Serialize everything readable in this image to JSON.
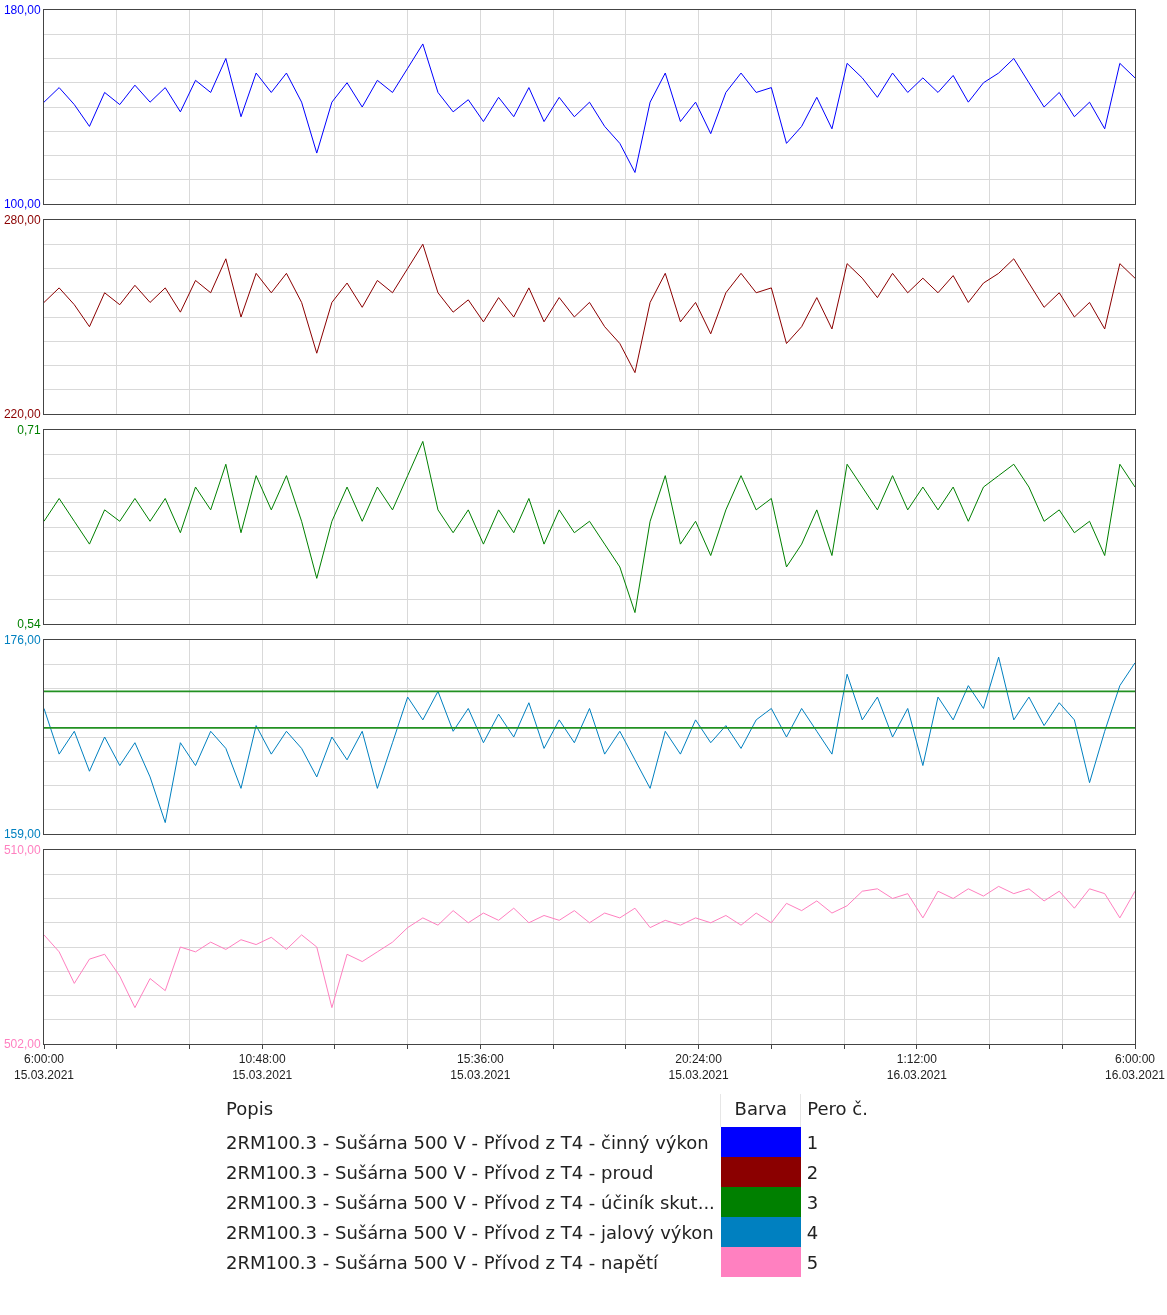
{
  "chart_data": [
    {
      "type": "line",
      "tick_labels": "y",
      "grid": true,
      "legend": "bottom",
      "annotations": [
        "1"
      ],
      "x": [
        "2021-03-15T06:00",
        "2021-03-15T06:20",
        "2021-03-15T06:40",
        "2021-03-15T07:00",
        "2021-03-15T07:20",
        "2021-03-15T07:40",
        "2021-03-15T08:00",
        "2021-03-15T08:20",
        "2021-03-15T08:40",
        "2021-03-15T09:00",
        "2021-03-15T09:20",
        "2021-03-15T09:40",
        "2021-03-15T10:00",
        "2021-03-15T10:20",
        "2021-03-15T10:40",
        "2021-03-15T11:00",
        "2021-03-15T11:20",
        "2021-03-15T11:40",
        "2021-03-15T12:00",
        "2021-03-15T12:20",
        "2021-03-15T12:40",
        "2021-03-15T13:00",
        "2021-03-15T13:20",
        "2021-03-15T13:40",
        "2021-03-15T14:00",
        "2021-03-15T14:20",
        "2021-03-15T14:40",
        "2021-03-15T15:00",
        "2021-03-15T15:20",
        "2021-03-15T15:40",
        "2021-03-15T16:00",
        "2021-03-15T16:20",
        "2021-03-15T16:40",
        "2021-03-15T17:00",
        "2021-03-15T17:20",
        "2021-03-15T17:40",
        "2021-03-15T18:00",
        "2021-03-15T18:20",
        "2021-03-15T18:40",
        "2021-03-15T19:00",
        "2021-03-15T19:20",
        "2021-03-15T19:40",
        "2021-03-15T20:00",
        "2021-03-15T20:20",
        "2021-03-15T20:40",
        "2021-03-15T21:00",
        "2021-03-15T21:20",
        "2021-03-15T21:40",
        "2021-03-15T22:00",
        "2021-03-15T22:20",
        "2021-03-15T22:40",
        "2021-03-15T23:00",
        "2021-03-15T23:20",
        "2021-03-15T23:40",
        "2021-03-16T00:00",
        "2021-03-16T00:20",
        "2021-03-16T00:40",
        "2021-03-16T01:00",
        "2021-03-16T01:20",
        "2021-03-16T01:40",
        "2021-03-16T02:00",
        "2021-03-16T02:20",
        "2021-03-16T02:40",
        "2021-03-16T03:00",
        "2021-03-16T03:20",
        "2021-03-16T03:40",
        "2021-03-16T04:00",
        "2021-03-16T04:20",
        "2021-03-16T04:40",
        "2021-03-16T05:00",
        "2021-03-16T05:20",
        "2021-03-16T05:40",
        "2021-03-16T06:00"
      ],
      "xlim": [
        "2021-03-15T06:00",
        "2021-03-16T06:00"
      ],
      "xticks": [
        {
          "value": "2021-03-15T06:00",
          "label": null
        },
        {
          "value": "2021-03-15T07:36",
          "label": null
        },
        {
          "value": "2021-03-15T09:12",
          "label": null
        },
        {
          "value": "2021-03-15T10:48",
          "label": null
        },
        {
          "value": "2021-03-15T12:24",
          "label": null
        },
        {
          "value": "2021-03-15T14:00",
          "label": null
        },
        {
          "value": "2021-03-15T15:36",
          "label": null
        },
        {
          "value": "2021-03-15T17:12",
          "label": null
        },
        {
          "value": "2021-03-15T18:48",
          "label": null
        },
        {
          "value": "2021-03-15T20:24",
          "label": null
        },
        {
          "value": "2021-03-15T22:00",
          "label": null
        },
        {
          "value": "2021-03-15T23:36",
          "label": null
        },
        {
          "value": "2021-03-16T01:12",
          "label": null
        },
        {
          "value": "2021-03-16T02:48",
          "label": null
        },
        {
          "value": "2021-03-16T04:24",
          "label": null
        },
        {
          "value": "2021-03-16T06:00",
          "label": null
        }
      ],
      "ylim": [
        100,
        180
      ],
      "yticks": [
        {
          "value": 180,
          "label": "180,00"
        },
        {
          "value": 170,
          "label": null
        },
        {
          "value": 160,
          "label": null
        },
        {
          "value": 150,
          "label": null
        },
        {
          "value": 140,
          "label": null
        },
        {
          "value": 130,
          "label": null
        },
        {
          "value": 120,
          "label": null
        },
        {
          "value": 110,
          "label": null
        },
        {
          "value": 100,
          "label": "100,00"
        }
      ],
      "series": [
        {
          "name": "2RM100.3 - Sušárna 500 V - Přívod z T4 - činný výkon",
          "color": "#0000ff",
          "values": [
            142,
            148,
            141,
            132,
            146,
            141,
            149,
            142,
            148,
            138,
            151,
            146,
            160,
            136,
            154,
            146,
            154,
            142,
            121,
            142,
            150,
            140,
            151,
            146,
            156,
            166,
            146,
            138,
            143,
            134,
            144,
            136,
            148,
            134,
            144,
            136,
            142,
            132,
            125,
            113,
            142,
            154,
            134,
            142,
            129,
            146,
            154,
            146,
            148,
            125,
            132,
            144,
            131,
            158,
            152,
            144,
            154,
            146,
            152,
            146,
            153,
            142,
            150,
            154,
            160,
            150,
            140,
            146,
            136,
            142,
            131,
            158,
            152
          ]
        }
      ]
    },
    {
      "type": "line",
      "tick_labels": "y",
      "grid": true,
      "legend": "bottom",
      "annotations": [
        "2"
      ],
      "x": [
        "2021-03-15T06:00",
        "2021-03-15T06:20",
        "2021-03-15T06:40",
        "2021-03-15T07:00",
        "2021-03-15T07:20",
        "2021-03-15T07:40",
        "2021-03-15T08:00",
        "2021-03-15T08:20",
        "2021-03-15T08:40",
        "2021-03-15T09:00",
        "2021-03-15T09:20",
        "2021-03-15T09:40",
        "2021-03-15T10:00",
        "2021-03-15T10:20",
        "2021-03-15T10:40",
        "2021-03-15T11:00",
        "2021-03-15T11:20",
        "2021-03-15T11:40",
        "2021-03-15T12:00",
        "2021-03-15T12:20",
        "2021-03-15T12:40",
        "2021-03-15T13:00",
        "2021-03-15T13:20",
        "2021-03-15T13:40",
        "2021-03-15T14:00",
        "2021-03-15T14:20",
        "2021-03-15T14:40",
        "2021-03-15T15:00",
        "2021-03-15T15:20",
        "2021-03-15T15:40",
        "2021-03-15T16:00",
        "2021-03-15T16:20",
        "2021-03-15T16:40",
        "2021-03-15T17:00",
        "2021-03-15T17:20",
        "2021-03-15T17:40",
        "2021-03-15T18:00",
        "2021-03-15T18:20",
        "2021-03-15T18:40",
        "2021-03-15T19:00",
        "2021-03-15T19:20",
        "2021-03-15T19:40",
        "2021-03-15T20:00",
        "2021-03-15T20:20",
        "2021-03-15T20:40",
        "2021-03-15T21:00",
        "2021-03-15T21:20",
        "2021-03-15T21:40",
        "2021-03-15T22:00",
        "2021-03-15T22:20",
        "2021-03-15T22:40",
        "2021-03-15T23:00",
        "2021-03-15T23:20",
        "2021-03-15T23:40",
        "2021-03-16T00:00",
        "2021-03-16T00:20",
        "2021-03-16T00:40",
        "2021-03-16T01:00",
        "2021-03-16T01:20",
        "2021-03-16T01:40",
        "2021-03-16T02:00",
        "2021-03-16T02:20",
        "2021-03-16T02:40",
        "2021-03-16T03:00",
        "2021-03-16T03:20",
        "2021-03-16T03:40",
        "2021-03-16T04:00",
        "2021-03-16T04:20",
        "2021-03-16T04:40",
        "2021-03-16T05:00",
        "2021-03-16T05:20",
        "2021-03-16T05:40",
        "2021-03-16T06:00"
      ],
      "xlim": [
        "2021-03-15T06:00",
        "2021-03-16T06:00"
      ],
      "xticks": [
        {
          "value": "2021-03-15T06:00",
          "label": null
        },
        {
          "value": "2021-03-15T07:36",
          "label": null
        },
        {
          "value": "2021-03-15T09:12",
          "label": null
        },
        {
          "value": "2021-03-15T10:48",
          "label": null
        },
        {
          "value": "2021-03-15T12:24",
          "label": null
        },
        {
          "value": "2021-03-15T14:00",
          "label": null
        },
        {
          "value": "2021-03-15T15:36",
          "label": null
        },
        {
          "value": "2021-03-15T17:12",
          "label": null
        },
        {
          "value": "2021-03-15T18:48",
          "label": null
        },
        {
          "value": "2021-03-15T20:24",
          "label": null
        },
        {
          "value": "2021-03-15T22:00",
          "label": null
        },
        {
          "value": "2021-03-15T23:36",
          "label": null
        },
        {
          "value": "2021-03-16T01:12",
          "label": null
        },
        {
          "value": "2021-03-16T02:48",
          "label": null
        },
        {
          "value": "2021-03-16T04:24",
          "label": null
        },
        {
          "value": "2021-03-16T06:00",
          "label": null
        }
      ],
      "ylim": [
        220,
        280
      ],
      "yticks": [
        {
          "value": 280,
          "label": "280,00"
        },
        {
          "value": 272.5,
          "label": null
        },
        {
          "value": 265,
          "label": null
        },
        {
          "value": 257.5,
          "label": null
        },
        {
          "value": 250,
          "label": null
        },
        {
          "value": 242.5,
          "label": null
        },
        {
          "value": 235,
          "label": null
        },
        {
          "value": 227.5,
          "label": null
        },
        {
          "value": 220,
          "label": "220,00"
        }
      ],
      "series": [
        {
          "name": "2RM100.3 - Sušárna 500 V - Přívod z T4 - proud",
          "color": "#8b0000",
          "values": [
            254.5,
            259,
            253.8,
            247,
            257.5,
            253.8,
            259.8,
            254.5,
            259,
            251.5,
            261.3,
            257.5,
            268,
            250,
            263.5,
            257.5,
            263.5,
            254.5,
            238.8,
            254.5,
            260.5,
            253,
            261.3,
            257.5,
            265,
            272.5,
            257.5,
            251.5,
            255.3,
            248.5,
            256,
            250,
            259,
            248.5,
            256,
            250,
            254.5,
            247,
            241.8,
            232.8,
            254.5,
            263.5,
            248.5,
            254.5,
            244.8,
            257.5,
            263.5,
            257.5,
            259,
            241.8,
            247,
            256,
            246.3,
            266.5,
            262,
            256,
            263.5,
            257.5,
            262,
            257.5,
            262.8,
            254.5,
            260.5,
            263.5,
            268,
            260.5,
            253,
            257.5,
            250,
            254.5,
            246.3,
            266.5,
            262
          ]
        }
      ]
    },
    {
      "type": "line",
      "tick_labels": "y",
      "grid": true,
      "legend": "bottom",
      "annotations": [
        "3"
      ],
      "x": [
        "2021-03-15T06:00",
        "2021-03-15T06:20",
        "2021-03-15T06:40",
        "2021-03-15T07:00",
        "2021-03-15T07:20",
        "2021-03-15T07:40",
        "2021-03-15T08:00",
        "2021-03-15T08:20",
        "2021-03-15T08:40",
        "2021-03-15T09:00",
        "2021-03-15T09:20",
        "2021-03-15T09:40",
        "2021-03-15T10:00",
        "2021-03-15T10:20",
        "2021-03-15T10:40",
        "2021-03-15T11:00",
        "2021-03-15T11:20",
        "2021-03-15T11:40",
        "2021-03-15T12:00",
        "2021-03-15T12:20",
        "2021-03-15T12:40",
        "2021-03-15T13:00",
        "2021-03-15T13:20",
        "2021-03-15T13:40",
        "2021-03-15T14:00",
        "2021-03-15T14:20",
        "2021-03-15T14:40",
        "2021-03-15T15:00",
        "2021-03-15T15:20",
        "2021-03-15T15:40",
        "2021-03-15T16:00",
        "2021-03-15T16:20",
        "2021-03-15T16:40",
        "2021-03-15T17:00",
        "2021-03-15T17:20",
        "2021-03-15T17:40",
        "2021-03-15T18:00",
        "2021-03-15T18:20",
        "2021-03-15T18:40",
        "2021-03-15T19:00",
        "2021-03-15T19:20",
        "2021-03-15T19:40",
        "2021-03-15T20:00",
        "2021-03-15T20:20",
        "2021-03-15T20:40",
        "2021-03-15T21:00",
        "2021-03-15T21:20",
        "2021-03-15T21:40",
        "2021-03-15T22:00",
        "2021-03-15T22:20",
        "2021-03-15T22:40",
        "2021-03-15T23:00",
        "2021-03-15T23:20",
        "2021-03-15T23:40",
        "2021-03-16T00:00",
        "2021-03-16T00:20",
        "2021-03-16T00:40",
        "2021-03-16T01:00",
        "2021-03-16T01:20",
        "2021-03-16T01:40",
        "2021-03-16T02:00",
        "2021-03-16T02:20",
        "2021-03-16T02:40",
        "2021-03-16T03:00",
        "2021-03-16T03:20",
        "2021-03-16T03:40",
        "2021-03-16T04:00",
        "2021-03-16T04:20",
        "2021-03-16T04:40",
        "2021-03-16T05:00",
        "2021-03-16T05:20",
        "2021-03-16T05:40",
        "2021-03-16T06:00"
      ],
      "xlim": [
        "2021-03-15T06:00",
        "2021-03-16T06:00"
      ],
      "xticks": [
        {
          "value": "2021-03-15T06:00",
          "label": null
        },
        {
          "value": "2021-03-15T07:36",
          "label": null
        },
        {
          "value": "2021-03-15T09:12",
          "label": null
        },
        {
          "value": "2021-03-15T10:48",
          "label": null
        },
        {
          "value": "2021-03-15T12:24",
          "label": null
        },
        {
          "value": "2021-03-15T14:00",
          "label": null
        },
        {
          "value": "2021-03-15T15:36",
          "label": null
        },
        {
          "value": "2021-03-15T17:12",
          "label": null
        },
        {
          "value": "2021-03-15T18:48",
          "label": null
        },
        {
          "value": "2021-03-15T20:24",
          "label": null
        },
        {
          "value": "2021-03-15T22:00",
          "label": null
        },
        {
          "value": "2021-03-15T23:36",
          "label": null
        },
        {
          "value": "2021-03-16T01:12",
          "label": null
        },
        {
          "value": "2021-03-16T02:48",
          "label": null
        },
        {
          "value": "2021-03-16T04:24",
          "label": null
        },
        {
          "value": "2021-03-16T06:00",
          "label": null
        }
      ],
      "ylim": [
        0.54,
        0.71
      ],
      "yticks": [
        {
          "value": 0.71,
          "label": "0,71"
        },
        {
          "value": 0.68875,
          "label": null
        },
        {
          "value": 0.6675,
          "label": null
        },
        {
          "value": 0.64625,
          "label": null
        },
        {
          "value": 0.625,
          "label": null
        },
        {
          "value": 0.60375,
          "label": null
        },
        {
          "value": 0.5825,
          "label": null
        },
        {
          "value": 0.56125,
          "label": null
        },
        {
          "value": 0.54,
          "label": "0,54"
        }
      ],
      "series": [
        {
          "name": "2RM100.3 - Sušárna 500 V - Přívod z T4 - účiník skut...",
          "color": "#008000",
          "values": [
            0.63,
            0.65,
            0.63,
            0.61,
            0.64,
            0.63,
            0.65,
            0.63,
            0.65,
            0.62,
            0.66,
            0.64,
            0.68,
            0.62,
            0.67,
            0.64,
            0.67,
            0.63,
            0.58,
            0.63,
            0.66,
            0.63,
            0.66,
            0.64,
            0.67,
            0.7,
            0.64,
            0.62,
            0.64,
            0.61,
            0.64,
            0.62,
            0.65,
            0.61,
            0.64,
            0.62,
            0.63,
            0.61,
            0.59,
            0.55,
            0.63,
            0.67,
            0.61,
            0.63,
            0.6,
            0.64,
            0.67,
            0.64,
            0.65,
            0.59,
            0.61,
            0.64,
            0.6,
            0.68,
            0.66,
            0.64,
            0.67,
            0.64,
            0.66,
            0.64,
            0.66,
            0.63,
            0.66,
            0.67,
            0.68,
            0.66,
            0.63,
            0.64,
            0.62,
            0.63,
            0.6,
            0.68,
            0.66
          ]
        }
      ]
    },
    {
      "type": "line",
      "tick_labels": "y",
      "grid": true,
      "legend": "bottom",
      "annotations": [
        "4"
      ],
      "x": [
        "2021-03-15T06:00",
        "2021-03-15T06:20",
        "2021-03-15T06:40",
        "2021-03-15T07:00",
        "2021-03-15T07:20",
        "2021-03-15T07:40",
        "2021-03-15T08:00",
        "2021-03-15T08:20",
        "2021-03-15T08:40",
        "2021-03-15T09:00",
        "2021-03-15T09:20",
        "2021-03-15T09:40",
        "2021-03-15T10:00",
        "2021-03-15T10:20",
        "2021-03-15T10:40",
        "2021-03-15T11:00",
        "2021-03-15T11:20",
        "2021-03-15T11:40",
        "2021-03-15T12:00",
        "2021-03-15T12:20",
        "2021-03-15T12:40",
        "2021-03-15T13:00",
        "2021-03-15T13:20",
        "2021-03-15T13:40",
        "2021-03-15T14:00",
        "2021-03-15T14:20",
        "2021-03-15T14:40",
        "2021-03-15T15:00",
        "2021-03-15T15:20",
        "2021-03-15T15:40",
        "2021-03-15T16:00",
        "2021-03-15T16:20",
        "2021-03-15T16:40",
        "2021-03-15T17:00",
        "2021-03-15T17:20",
        "2021-03-15T17:40",
        "2021-03-15T18:00",
        "2021-03-15T18:20",
        "2021-03-15T18:40",
        "2021-03-15T19:00",
        "2021-03-15T19:20",
        "2021-03-15T19:40",
        "2021-03-15T20:00",
        "2021-03-15T20:20",
        "2021-03-15T20:40",
        "2021-03-15T21:00",
        "2021-03-15T21:20",
        "2021-03-15T21:40",
        "2021-03-15T22:00",
        "2021-03-15T22:20",
        "2021-03-15T22:40",
        "2021-03-15T23:00",
        "2021-03-15T23:20",
        "2021-03-15T23:40",
        "2021-03-16T00:00",
        "2021-03-16T00:20",
        "2021-03-16T00:40",
        "2021-03-16T01:00",
        "2021-03-16T01:20",
        "2021-03-16T01:40",
        "2021-03-16T02:00",
        "2021-03-16T02:20",
        "2021-03-16T02:40",
        "2021-03-16T03:00",
        "2021-03-16T03:20",
        "2021-03-16T03:40",
        "2021-03-16T04:00",
        "2021-03-16T04:20",
        "2021-03-16T04:40",
        "2021-03-16T05:00",
        "2021-03-16T05:20",
        "2021-03-16T05:40",
        "2021-03-16T06:00"
      ],
      "xlim": [
        "2021-03-15T06:00",
        "2021-03-16T06:00"
      ],
      "xticks": [
        {
          "value": "2021-03-15T06:00",
          "label": null
        },
        {
          "value": "2021-03-15T07:36",
          "label": null
        },
        {
          "value": "2021-03-15T09:12",
          "label": null
        },
        {
          "value": "2021-03-15T10:48",
          "label": null
        },
        {
          "value": "2021-03-15T12:24",
          "label": null
        },
        {
          "value": "2021-03-15T14:00",
          "label": null
        },
        {
          "value": "2021-03-15T15:36",
          "label": null
        },
        {
          "value": "2021-03-15T17:12",
          "label": null
        },
        {
          "value": "2021-03-15T18:48",
          "label": null
        },
        {
          "value": "2021-03-15T20:24",
          "label": null
        },
        {
          "value": "2021-03-15T22:00",
          "label": null
        },
        {
          "value": "2021-03-15T23:36",
          "label": null
        },
        {
          "value": "2021-03-16T01:12",
          "label": null
        },
        {
          "value": "2021-03-16T02:48",
          "label": null
        },
        {
          "value": "2021-03-16T04:24",
          "label": null
        },
        {
          "value": "2021-03-16T06:00",
          "label": null
        }
      ],
      "ylim": [
        159,
        176
      ],
      "yticks": [
        {
          "value": 176,
          "label": "176,00"
        },
        {
          "value": 173.875,
          "label": null
        },
        {
          "value": 171.75,
          "label": null
        },
        {
          "value": 169.625,
          "label": null
        },
        {
          "value": 167.5,
          "label": null
        },
        {
          "value": 165.375,
          "label": null
        },
        {
          "value": 163.25,
          "label": null
        },
        {
          "value": 161.125,
          "label": null
        },
        {
          "value": 159,
          "label": "159,00"
        }
      ],
      "ref_lines": [
        {
          "axis": "y",
          "value": 171.5,
          "color": "#229122"
        },
        {
          "axis": "y",
          "value": 168.3,
          "color": "#229122"
        }
      ],
      "series": [
        {
          "name": "2RM100.3 - Sušárna 500 V - Přívod z T4 - jalový výkon",
          "color": "#0080c0",
          "values": [
            170,
            166,
            168,
            164.5,
            167.5,
            165,
            167,
            164,
            160,
            167,
            165,
            168,
            166.5,
            163,
            168.5,
            166,
            168,
            166.5,
            164,
            167.5,
            165.5,
            168,
            163,
            167,
            171,
            169,
            171.5,
            168,
            170,
            167,
            169.5,
            167.5,
            170.5,
            166.5,
            169,
            167,
            170,
            166,
            168,
            165.5,
            163,
            168,
            166,
            169,
            167,
            168.5,
            166.5,
            169,
            170,
            167.5,
            170,
            168,
            166,
            173,
            169,
            171,
            167.5,
            170,
            165,
            171,
            169,
            172,
            170,
            174.5,
            169,
            171,
            168.5,
            170.5,
            169,
            163.5,
            168,
            172,
            174
          ]
        }
      ]
    },
    {
      "type": "line",
      "grid": true,
      "legend": "bottom",
      "legend_title": "Popis",
      "annotations": [
        "5",
        "Barva",
        "Pero č."
      ],
      "x": [
        "2021-03-15T06:00",
        "2021-03-15T06:20",
        "2021-03-15T06:40",
        "2021-03-15T07:00",
        "2021-03-15T07:20",
        "2021-03-15T07:40",
        "2021-03-15T08:00",
        "2021-03-15T08:20",
        "2021-03-15T08:40",
        "2021-03-15T09:00",
        "2021-03-15T09:20",
        "2021-03-15T09:40",
        "2021-03-15T10:00",
        "2021-03-15T10:20",
        "2021-03-15T10:40",
        "2021-03-15T11:00",
        "2021-03-15T11:20",
        "2021-03-15T11:40",
        "2021-03-15T12:00",
        "2021-03-15T12:20",
        "2021-03-15T12:40",
        "2021-03-15T13:00",
        "2021-03-15T13:20",
        "2021-03-15T13:40",
        "2021-03-15T14:00",
        "2021-03-15T14:20",
        "2021-03-15T14:40",
        "2021-03-15T15:00",
        "2021-03-15T15:20",
        "2021-03-15T15:40",
        "2021-03-15T16:00",
        "2021-03-15T16:20",
        "2021-03-15T16:40",
        "2021-03-15T17:00",
        "2021-03-15T17:20",
        "2021-03-15T17:40",
        "2021-03-15T18:00",
        "2021-03-15T18:20",
        "2021-03-15T18:40",
        "2021-03-15T19:00",
        "2021-03-15T19:20",
        "2021-03-15T19:40",
        "2021-03-15T20:00",
        "2021-03-15T20:20",
        "2021-03-15T20:40",
        "2021-03-15T21:00",
        "2021-03-15T21:20",
        "2021-03-15T21:40",
        "2021-03-15T22:00",
        "2021-03-15T22:20",
        "2021-03-15T22:40",
        "2021-03-15T23:00",
        "2021-03-15T23:20",
        "2021-03-15T23:40",
        "2021-03-16T00:00",
        "2021-03-16T00:20",
        "2021-03-16T00:40",
        "2021-03-16T01:00",
        "2021-03-16T01:20",
        "2021-03-16T01:40",
        "2021-03-16T02:00",
        "2021-03-16T02:20",
        "2021-03-16T02:40",
        "2021-03-16T03:00",
        "2021-03-16T03:20",
        "2021-03-16T03:40",
        "2021-03-16T04:00",
        "2021-03-16T04:20",
        "2021-03-16T04:40",
        "2021-03-16T05:00",
        "2021-03-16T05:20",
        "2021-03-16T05:40",
        "2021-03-16T06:00"
      ],
      "xlim": [
        "2021-03-15T06:00",
        "2021-03-16T06:00"
      ],
      "xticks": [
        {
          "value": "2021-03-15T06:00",
          "label": "6:00:00\n15.03.2021"
        },
        {
          "value": "2021-03-15T07:36",
          "label": null
        },
        {
          "value": "2021-03-15T09:12",
          "label": null
        },
        {
          "value": "2021-03-15T10:48",
          "label": "10:48:00\n15.03.2021"
        },
        {
          "value": "2021-03-15T12:24",
          "label": null
        },
        {
          "value": "2021-03-15T14:00",
          "label": null
        },
        {
          "value": "2021-03-15T15:36",
          "label": "15:36:00\n15.03.2021"
        },
        {
          "value": "2021-03-15T17:12",
          "label": null
        },
        {
          "value": "2021-03-15T18:48",
          "label": null
        },
        {
          "value": "2021-03-15T20:24",
          "label": "20:24:00\n15.03.2021"
        },
        {
          "value": "2021-03-15T22:00",
          "label": null
        },
        {
          "value": "2021-03-15T23:36",
          "label": null
        },
        {
          "value": "2021-03-16T01:12",
          "label": "1:12:00\n16.03.2021"
        },
        {
          "value": "2021-03-16T02:48",
          "label": null
        },
        {
          "value": "2021-03-16T04:24",
          "label": null
        },
        {
          "value": "2021-03-16T06:00",
          "label": "6:00:00\n16.03.2021"
        }
      ],
      "ylim": [
        502,
        510
      ],
      "yticks": [
        {
          "value": 510,
          "label": "510,00"
        },
        {
          "value": 509,
          "label": null
        },
        {
          "value": 508,
          "label": null
        },
        {
          "value": 507,
          "label": null
        },
        {
          "value": 506,
          "label": null
        },
        {
          "value": 505,
          "label": null
        },
        {
          "value": 504,
          "label": null
        },
        {
          "value": 503,
          "label": null
        },
        {
          "value": 502,
          "label": "502,00"
        }
      ],
      "series": [
        {
          "name": "2RM100.3 - Sušárna 500 V - Přívod z T4 - napětí",
          "color": "#ff80c0",
          "values": [
            506.5,
            505.8,
            504.5,
            505.5,
            505.7,
            504.8,
            503.5,
            504.7,
            504.2,
            506,
            505.8,
            506.2,
            505.9,
            506.3,
            506.1,
            506.4,
            505.9,
            506.5,
            506,
            503.5,
            505.7,
            505.4,
            505.8,
            506.2,
            506.8,
            507.2,
            506.9,
            507.5,
            507,
            507.4,
            507.1,
            507.6,
            507,
            507.3,
            507.1,
            507.5,
            507,
            507.4,
            507.2,
            507.6,
            506.8,
            507.1,
            506.9,
            507.2,
            507,
            507.3,
            506.9,
            507.4,
            507,
            507.8,
            507.5,
            507.9,
            507.4,
            507.7,
            508.3,
            508.4,
            508,
            508.2,
            507.2,
            508.3,
            508,
            508.4,
            508.1,
            508.5,
            508.2,
            508.4,
            507.9,
            508.3,
            507.6,
            508.4,
            508.2,
            507.2,
            508.3
          ]
        }
      ]
    }
  ]
}
